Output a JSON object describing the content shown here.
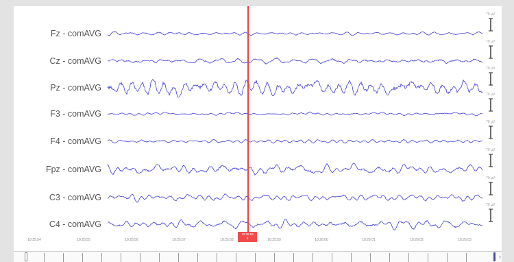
{
  "channels": [
    {
      "label": "Fz - comAVG",
      "scale": "70 µV"
    },
    {
      "label": "Cz - comAVG",
      "scale": "70 µV"
    },
    {
      "label": "Pz - comAVG",
      "scale": "70 µV"
    },
    {
      "label": "F3 - comAVG",
      "scale": "70 µV"
    },
    {
      "label": "F4 - comAVG",
      "scale": "70 µV"
    },
    {
      "label": "Fpz - comAVG",
      "scale": "70 µV"
    },
    {
      "label": "C3 - comAVG",
      "scale": "70 µV"
    },
    {
      "label": "C4 - comAVG",
      "scale": "70 µV"
    }
  ],
  "time_ticks": [
    "10:25:54",
    "10:25:55",
    "10:25:56",
    "10:25:57",
    "10:25:58",
    "10:25:59",
    "10:26:00",
    "10:26:01",
    "10:26:02",
    "10:26:03"
  ],
  "cursor": {
    "time": "10:25:59",
    "marker": "S"
  },
  "colors": {
    "trace": "#3f3fd6",
    "cursor": "#ef3e3e",
    "background": "#ffffff",
    "frame": "#e3e3e3"
  }
}
